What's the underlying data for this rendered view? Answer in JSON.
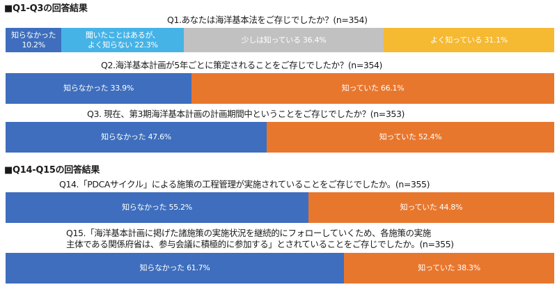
{
  "colors": {
    "dark_blue": "#3e6ebd",
    "light_blue": "#46b3e6",
    "gray": "#c1c1c1",
    "yellow": "#f5b932",
    "orange": "#e8772e"
  },
  "sections": [
    {
      "title": "■Q1-Q3の回答結果"
    },
    {
      "title": "■Q14-Q15の回答結果"
    }
  ],
  "chart_data": [
    {
      "type": "bar",
      "title": "Q1.あなたは海洋基本法をご存じでしたか？(n=354)",
      "categories": [
        "知らなかった",
        "聞いたことはあるが、よく知らない",
        "少しは知っている",
        "よく知っている"
      ],
      "values": [
        10.2,
        22.3,
        36.4,
        31.1
      ],
      "segment_labels": [
        [
          "知らなかった",
          "10.2%"
        ],
        [
          "聞いたことはあるが、",
          "よく知らない 22.3%"
        ],
        [
          "少しは知っている 36.4%"
        ],
        [
          "よく知っている 31.1%"
        ]
      ],
      "colors": [
        "#3e6ebd",
        "#46b3e6",
        "#c1c1c1",
        "#f5b932"
      ]
    },
    {
      "type": "bar",
      "title": "Q2.海洋基本計画が5年ごとに策定されることをご存じでしたか？(n=354)",
      "categories": [
        "知らなかった",
        "知っていた"
      ],
      "values": [
        33.9,
        66.1
      ],
      "segment_labels": [
        [
          "知らなかった 33.9%"
        ],
        [
          "知っていた 66.1%"
        ]
      ],
      "colors": [
        "#3e6ebd",
        "#e8772e"
      ]
    },
    {
      "type": "bar",
      "title": "Q3. 現在、第3期海洋基本計画の計画期間中ということをご存じでしたか？(n=353)",
      "categories": [
        "知らなかった",
        "知っていた"
      ],
      "values": [
        47.6,
        52.4
      ],
      "segment_labels": [
        [
          "知らなかった 47.6%"
        ],
        [
          "知っていた 52.4%"
        ]
      ],
      "colors": [
        "#3e6ebd",
        "#e8772e"
      ]
    },
    {
      "type": "bar",
      "title": "Q14.「PDCAサイクル」による施策の工程管理が実施されていることをご存じでしたか。(n=355)",
      "categories": [
        "知らなかった",
        "知っていた"
      ],
      "values": [
        55.2,
        44.8
      ],
      "segment_labels": [
        [
          "知らなかった 55.2%"
        ],
        [
          "知っていた 44.8%"
        ]
      ],
      "colors": [
        "#3e6ebd",
        "#e8772e"
      ]
    },
    {
      "type": "bar",
      "title": "Q15.「海洋基本計画に掲げた諸施策の実施状況を継続的にフォローしていくため、各施策の実施主体である関係府省は、参与会議に積極的に参加する」とされていることをご存じでしたか。(n=355)",
      "title_lines": [
        "Q15.「海洋基本計画に掲げた諸施策の実施状況を継続的にフォローしていくため、各施策の実施",
        "主体である関係府省は、参与会議に積極的に参加する」とされていることをご存じでしたか。(n=355)"
      ],
      "categories": [
        "知らなかった",
        "知っていた"
      ],
      "values": [
        61.7,
        38.3
      ],
      "segment_labels": [
        [
          "知らなかった 61.7%"
        ],
        [
          "知っていた 38.3%"
        ]
      ],
      "colors": [
        "#3e6ebd",
        "#e8772e"
      ]
    }
  ]
}
